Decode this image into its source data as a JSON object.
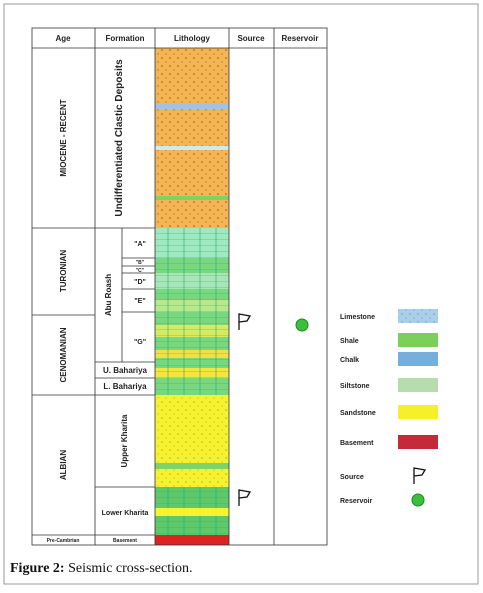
{
  "table": {
    "headers": [
      "Age",
      "Formation",
      "Lithology",
      "Source",
      "Reservoir"
    ],
    "ages": [
      "MIOCENE - RECENT",
      "TURONIAN",
      "CENOMANIAN",
      "ALBIAN",
      "Pre-Cambrian"
    ],
    "formations": [
      "Undifferentiated Clastic Deposits",
      "Abu Roash",
      "U. Bahariya",
      "L. Bahariya",
      "Upper Kharita",
      "Lower Kharita",
      "Basement"
    ],
    "members": [
      "\"A\"",
      "\"B\"",
      "\"C\"",
      "\"D\"",
      "\"E\"",
      "\"G\""
    ]
  },
  "legend": [
    "Limestone",
    "Shale",
    "Chalk",
    "Siltstone",
    "Sandstone",
    "Basement",
    "Source",
    "Reservoir"
  ],
  "caption": {
    "label": "Figure 2:",
    "text": "Seismic cross-section."
  }
}
